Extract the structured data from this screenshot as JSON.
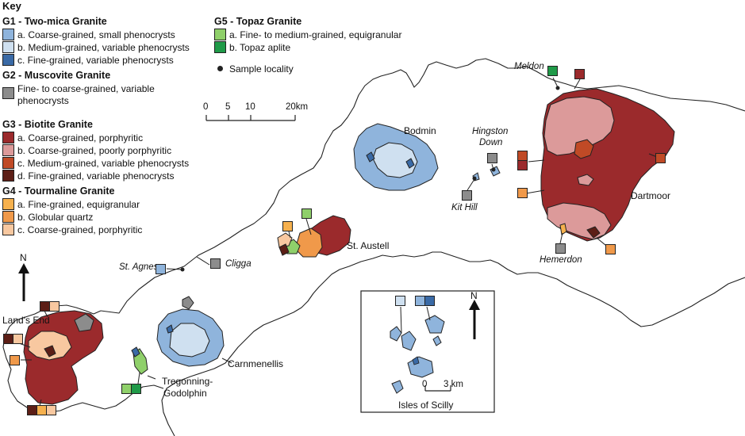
{
  "key": {
    "title": "Key",
    "groups": [
      {
        "id": "g1",
        "heading": "G1 - Two-mica Granite",
        "items": [
          {
            "label": "a. Coarse-grained, small phenocrysts",
            "color": "#8fb4dc"
          },
          {
            "label": "b. Medium-grained, variable phenocrysts",
            "color": "#cfe0f0"
          },
          {
            "label": "c. Fine-grained, variable phenocrysts",
            "color": "#3a6aa6"
          }
        ]
      },
      {
        "id": "g2",
        "heading": "G2 - Muscovite Granite",
        "items": [
          {
            "label": "Fine- to coarse-grained, variable",
            "label2": "phenocrysts",
            "color": "#8c8c8c"
          }
        ]
      },
      {
        "id": "g3",
        "heading": "G3 - Biotite Granite",
        "items": [
          {
            "label": "a. Coarse-grained, porphyritic",
            "color": "#9b2a2c"
          },
          {
            "label": "b. Coarse-grained, poorly porphyritic",
            "color": "#dc9a9a"
          },
          {
            "label": "c. Medium-grained, variable phenocrysts",
            "color": "#c04a26"
          },
          {
            "label": "d. Fine-grained, variable phenocrysts",
            "color": "#5c1e16"
          }
        ]
      },
      {
        "id": "g4",
        "heading": "G4 - Tourmaline Granite",
        "items": [
          {
            "label": "a. Fine-grained, equigranular",
            "color": "#f6b14e"
          },
          {
            "label": "b. Globular quartz",
            "color": "#f0994a"
          },
          {
            "label": "c. Coarse-grained, porphyritic",
            "color": "#f8c8a0"
          }
        ]
      },
      {
        "id": "g5",
        "heading": "G5 - Topaz Granite",
        "items": [
          {
            "label": "a. Fine- to medium-grained, equigranular",
            "color": "#8fd06a"
          },
          {
            "label": "b. Topaz aplite",
            "color": "#1f9a48"
          }
        ]
      }
    ],
    "sample_locality": "Sample locality"
  },
  "scale_bar": {
    "ticks": [
      "0",
      "5",
      "10",
      "20km"
    ]
  },
  "inset_scale": {
    "ticks": [
      "0",
      "3 km"
    ]
  },
  "north_arrow": "N",
  "inset_north": "N",
  "places": {
    "bodmin": "Bodmin",
    "dartmoor": "Dartmoor",
    "st_austell": "St. Austell",
    "carnmenellis": "Carnmenellis",
    "lands_end": "Land's End",
    "tregonning": "Tregonning-",
    "godolphin": "Godolphin",
    "isles_of_scilly": "Isles of Scilly"
  },
  "localities": {
    "meldon": "Meldon",
    "hingston_1": "Hingston",
    "hingston_2": "Down",
    "kit_hill": "Kit Hill",
    "hemerdon": "Hemerdon",
    "st_agnes": "St. Agnes",
    "cligga": "Cligga"
  },
  "colors": {
    "g1a": "#8fb4dc",
    "g1b": "#cfe0f0",
    "g1c": "#3a6aa6",
    "g2": "#8c8c8c",
    "g3a": "#9b2a2c",
    "g3b": "#dc9a9a",
    "g3c": "#c04a26",
    "g3d": "#5c1e16",
    "g4a": "#f6b14e",
    "g4b": "#f0994a",
    "g4c": "#f8c8a0",
    "g5a": "#8fd06a",
    "g5b": "#1f9a48"
  }
}
